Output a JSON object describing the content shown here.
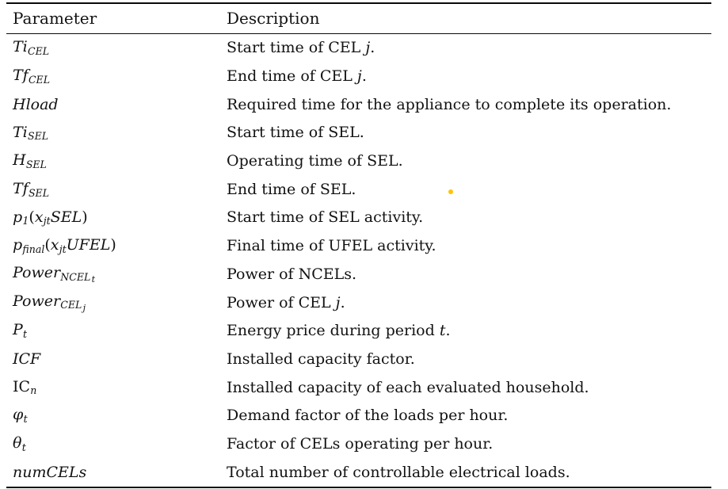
{
  "page": {
    "background": "#ffffff",
    "text_color": "#121212",
    "rule_color": "#0a0a0a"
  },
  "table": {
    "headers": [
      "Parameter",
      "Description"
    ],
    "rows": [
      {
        "param": [
          [
            "i",
            "Ti"
          ],
          [
            "sub",
            "CEL"
          ]
        ],
        "desc": [
          [
            "r",
            "Start time of CEL "
          ],
          [
            "i",
            "j"
          ],
          [
            "r",
            "."
          ]
        ]
      },
      {
        "param": [
          [
            "i",
            "Tf"
          ],
          [
            "sub",
            "CEL"
          ]
        ],
        "desc": [
          [
            "r",
            "End time of CEL "
          ],
          [
            "i",
            "j"
          ],
          [
            "r",
            "."
          ]
        ]
      },
      {
        "param": [
          [
            "i",
            "Hload"
          ]
        ],
        "desc": [
          [
            "r",
            "Required time for the appliance to complete its operation."
          ]
        ]
      },
      {
        "param": [
          [
            "i",
            "Ti"
          ],
          [
            "sub",
            "SEL"
          ]
        ],
        "desc": [
          [
            "r",
            "Start time of SEL."
          ]
        ]
      },
      {
        "param": [
          [
            "i",
            "H"
          ],
          [
            "sub",
            "SEL"
          ]
        ],
        "desc": [
          [
            "r",
            "Operating time of SEL."
          ]
        ]
      },
      {
        "param": [
          [
            "i",
            "Tf"
          ],
          [
            "sub",
            "SEL"
          ]
        ],
        "desc": [
          [
            "r",
            "End time of SEL."
          ]
        ]
      },
      {
        "param": [
          [
            "i",
            "p"
          ],
          [
            "sub",
            "1"
          ],
          [
            "r",
            "("
          ],
          [
            "i",
            "x"
          ],
          [
            "sub",
            "jt"
          ],
          [
            "i",
            "SEL"
          ],
          [
            "r",
            ")"
          ]
        ],
        "desc": [
          [
            "r",
            "Start time of SEL activity."
          ]
        ]
      },
      {
        "param": [
          [
            "i",
            "p"
          ],
          [
            "sub",
            "final"
          ],
          [
            "r",
            "("
          ],
          [
            "i",
            "x"
          ],
          [
            "sub",
            "jt"
          ],
          [
            "i",
            "UFEL"
          ],
          [
            "r",
            ")"
          ]
        ],
        "desc": [
          [
            "r",
            "Final time of UFEL activity."
          ]
        ]
      },
      {
        "param": [
          [
            "i",
            "Power"
          ],
          [
            "sub",
            "NCEL"
          ],
          [
            "subsub",
            "t"
          ]
        ],
        "desc": [
          [
            "r",
            "Power of NCELs."
          ]
        ]
      },
      {
        "param": [
          [
            "i",
            "Power"
          ],
          [
            "sub",
            "CEL"
          ],
          [
            "subsub",
            "j"
          ]
        ],
        "desc": [
          [
            "r",
            "Power of CEL "
          ],
          [
            "i",
            "j"
          ],
          [
            "r",
            "."
          ]
        ]
      },
      {
        "param": [
          [
            "i",
            "P"
          ],
          [
            "sub",
            "t"
          ]
        ],
        "desc": [
          [
            "r",
            "Energy price during period "
          ],
          [
            "i",
            "t"
          ],
          [
            "r",
            "."
          ]
        ]
      },
      {
        "param": [
          [
            "i",
            "ICF"
          ]
        ],
        "desc": [
          [
            "r",
            "Installed capacity factor."
          ]
        ]
      },
      {
        "param": [
          [
            "r",
            "IC"
          ],
          [
            "sub",
            "n"
          ]
        ],
        "desc": [
          [
            "r",
            "Installed capacity of each evaluated household."
          ]
        ]
      },
      {
        "param": [
          [
            "i",
            "φ"
          ],
          [
            "sub",
            "t"
          ]
        ],
        "desc": [
          [
            "r",
            "Demand factor of the loads per hour."
          ]
        ]
      },
      {
        "param": [
          [
            "i",
            "θ"
          ],
          [
            "sub",
            "t"
          ]
        ],
        "desc": [
          [
            "r",
            "Factor of CELs operating per hour."
          ]
        ]
      },
      {
        "param": [
          [
            "i",
            "numCELs"
          ]
        ],
        "desc": [
          [
            "r",
            "Total number of controllable electrical loads."
          ]
        ]
      }
    ]
  },
  "artifact": {
    "name": "yellow-dot",
    "color": "#FFC400"
  }
}
